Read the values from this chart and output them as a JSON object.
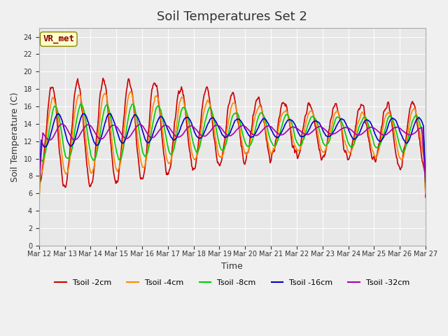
{
  "title": "Soil Temperatures Set 2",
  "xlabel": "Time",
  "ylabel": "Soil Temperature (C)",
  "ylim": [
    0,
    25
  ],
  "yticks": [
    0,
    2,
    4,
    6,
    8,
    10,
    12,
    14,
    16,
    18,
    20,
    22,
    24
  ],
  "bg_color": "#e8e8e8",
  "annotation_text": "VR_met",
  "annotation_color": "#8B0000",
  "annotation_bg": "#ffffcc",
  "x_labels": [
    "Mar 12",
    "Mar 13",
    "Mar 14",
    "Mar 15",
    "Mar 16",
    "Mar 17",
    "Mar 18",
    "Mar 19",
    "Mar 20",
    "Mar 21",
    "Mar 22",
    "Mar 23",
    "Mar 24",
    "Mar 25",
    "Mar 26",
    "Mar 27"
  ],
  "n_days": 15,
  "pts_per_day": 48,
  "series_colors": {
    "Tsoil -2cm": "#cc0000",
    "Tsoil -4cm": "#ff8800",
    "Tsoil -8cm": "#00cc00",
    "Tsoil -16cm": "#0000cc",
    "Tsoil -32cm": "#aa00aa"
  }
}
